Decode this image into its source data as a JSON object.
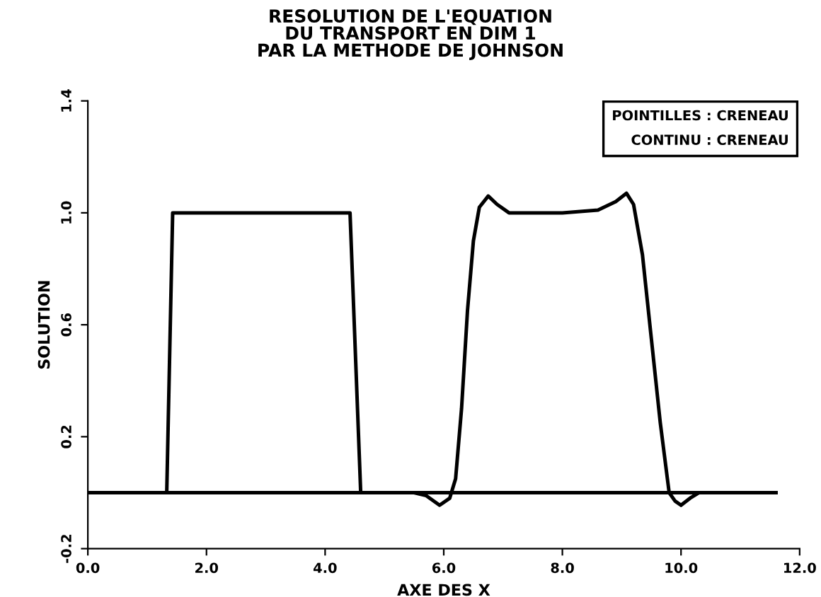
{
  "chart_data": {
    "type": "line",
    "title": "RESOLUTION DE L'EQUATION\nDU TRANSPORT EN DIM 1\nPAR LA METHODE DE JOHNSON",
    "xlabel": "AXE DES X",
    "ylabel": "SOLUTION",
    "series": [
      {
        "color": "#000000",
        "x": [
          0,
          1.33,
          1.43,
          4.42,
          4.6,
          11.6
        ],
        "values": [
          0,
          0,
          1.0,
          1.0,
          0,
          0
        ]
      },
      {
        "color": "#000000",
        "x": [
          0,
          5.5,
          5.7,
          5.93,
          6.1,
          6.2,
          6.3,
          6.4,
          6.5,
          6.6,
          6.75,
          6.9,
          7.1,
          8.0,
          8.6,
          8.9,
          9.08,
          9.2,
          9.35,
          9.5,
          9.65,
          9.8,
          9.9,
          10.0,
          10.15,
          10.3,
          11.6
        ],
        "values": [
          0,
          0,
          -0.01,
          -0.045,
          -0.02,
          0.05,
          0.3,
          0.65,
          0.9,
          1.02,
          1.06,
          1.03,
          1.0,
          1.0,
          1.01,
          1.04,
          1.07,
          1.03,
          0.85,
          0.55,
          0.25,
          0.0,
          -0.03,
          -0.045,
          -0.02,
          0.0,
          0
        ]
      }
    ],
    "annotations": [
      "POINTILLES : CRENEAU",
      "CONTINU : CRENEAU"
    ],
    "xlim": [
      0,
      12
    ],
    "xticks": [
      {
        "value": 0,
        "label": "0.0"
      },
      {
        "value": 2,
        "label": "2.0"
      },
      {
        "value": 4,
        "label": "4.0"
      },
      {
        "value": 6,
        "label": "6.0"
      },
      {
        "value": 8,
        "label": "8.0"
      },
      {
        "value": 10,
        "label": "10.0"
      },
      {
        "value": 12,
        "label": "12.0"
      }
    ],
    "ylim": [
      -0.2,
      1.4
    ],
    "yticks": [
      -0.2,
      0.2,
      0.6,
      {
        "value": 1,
        "label": "1.0"
      },
      1.4
    ],
    "grid": false,
    "legend": false,
    "marker": "none",
    "line_style": "solid"
  }
}
